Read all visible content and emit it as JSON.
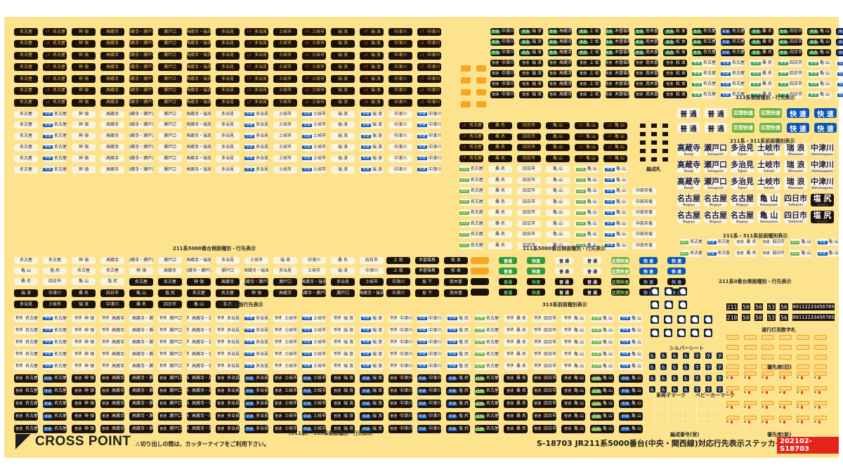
{
  "sheet": {
    "product_code": "S-18703",
    "title": "S-18703 JR211系5000番台(中央・関西線)対応行先表示ステッカー",
    "code_badge": "202102-S18703",
    "brand": "CROSS POINT",
    "warning": "⚠切り出しの際は、カッターナイフをご利用下さい。",
    "colors": {
      "background": "#fde38e",
      "dark_label": "#1b120c",
      "light_label": "#fbf3dc",
      "blue": "#0b56b2",
      "green": "#2e9b3a",
      "orange": "#f6a623",
      "red_badge": "#e3241b"
    }
  },
  "section_a": {
    "caption": "211系5000番台側面種別・行先表示",
    "destinations": [
      "名古屋",
      "名古屋",
      "神 領",
      "高蔵寺",
      "高蔵寺・瀬戸口",
      "瀬戸口",
      "高蔵寺・瑞浪",
      "多治見",
      "多治見",
      "土岐市",
      "土岐市",
      "瑞 浪",
      "瑞 浪",
      "中津川",
      "中津川"
    ],
    "tags": [
      "",
      "快速",
      "",
      "",
      "",
      "",
      "",
      "",
      "快速",
      "",
      "快速",
      "",
      "快速",
      "",
      "快速"
    ]
  },
  "section_b": {
    "caption": "211系5000番台側面種別・行先表示",
    "destinations": [
      "名古屋",
      "桑 名",
      "四日市",
      "亀 山",
      "亀 山",
      "亀 山",
      "中部天竜"
    ],
    "tags": [
      "211",
      "",
      "",
      "",
      "211",
      "快速",
      ""
    ]
  },
  "section_c": {
    "caption": "313系側面種別・行先表示",
    "destinations": [
      "中津川",
      "瑞 浪",
      "高蔵寺",
      "上 松",
      "木曽福島",
      "南木曽",
      "松 本",
      "名古屋",
      "名古屋",
      "桑 名",
      "四日市",
      "亀 山",
      "亀 山"
    ],
    "tags": [
      "普通",
      "普通",
      "普通",
      "普通",
      "普通",
      "普通",
      "普通",
      "普通",
      "快速",
      "普通",
      "普通",
      "普通",
      "快速"
    ]
  },
  "section_d": {
    "caption": "211系・311系前面種別表示",
    "kinds": [
      "普 通",
      "普 通",
      "区間快速",
      "区間快速",
      "快 速",
      "快 速"
    ]
  },
  "section_e": {
    "caption": "211系・311系前面種別表示",
    "rows": [
      [
        {
          "jp": "高蔵寺",
          "en": "Kozoji"
        },
        {
          "jp": "瀬戸口",
          "en": "Setoguchi"
        },
        {
          "jp": "多治見",
          "en": "Tajimi"
        },
        {
          "jp": "土岐市",
          "en": "Tokishi"
        },
        {
          "jp": "瑞 浪",
          "en": "Mizunami"
        },
        {
          "jp": "中津川",
          "en": "Nakatsugawa"
        }
      ],
      [
        {
          "jp": "名古屋",
          "en": "Nagoya"
        },
        {
          "jp": "名古屋",
          "en": "Nagoya"
        },
        {
          "jp": "名古屋",
          "en": "Nagoya"
        },
        {
          "jp": "亀 山",
          "en": "Kameyama"
        },
        {
          "jp": "四日市",
          "en": "Yokkaichi"
        },
        {
          "jp": "塩 尻",
          "en": "Shiojiri"
        }
      ]
    ]
  },
  "section_f": {
    "caption": "211系0番台側面種別・行先表示",
    "destinations": [
      "名古屋",
      "名古屋",
      "桑 名",
      "四日市",
      "亀 山",
      "亀 山"
    ],
    "tags": [
      "211",
      "快速",
      "普通",
      "普通",
      "211",
      "快速"
    ]
  },
  "formation_plates": {
    "caption": "編成札"
  },
  "section_g": {
    "caption": "313系前面行先表示",
    "destinations": [
      "名古屋",
      "名古屋",
      "神 領",
      "高蔵寺",
      "高蔵寺・瀬戸口",
      "瀬戸口",
      "高蔵寺・瑞浪",
      "多治見",
      "土岐市",
      "瑞 浪",
      "中津川",
      "桑 名",
      "四日市",
      "亀 山",
      "塩 尻",
      "上 松",
      "木曽福島",
      "松 本"
    ],
    "dark_row_extra": [
      "中津川",
      "坂 下",
      "南木曽"
    ]
  },
  "section_h": {
    "caption": "313系前面種別表示",
    "kinds": [
      "",
      "普通",
      "快速",
      "普 通",
      "普 通",
      "区間快速",
      "快 速",
      "快 速"
    ]
  },
  "section_i": {
    "caption": "(311系)・313系側面種別・行先表示",
    "destinations": [
      "名古屋",
      "名古屋",
      "神 領",
      "高蔵寺",
      "高蔵寺・瀬戸口",
      "瀬戸口",
      "高蔵寺・瑞浪",
      "多治見",
      "多治見",
      "土岐市",
      "土岐市",
      "瑞 浪",
      "瑞 浪",
      "中津川",
      "中津川",
      "塩 尻",
      "名古屋",
      "桑 名",
      "四日市",
      "亀 山",
      "亀 山",
      "亀 山"
    ],
    "tags": [
      "普通",
      "快速",
      "普通",
      "普通",
      "普通",
      "普通",
      "普通",
      "普通",
      "快速",
      "普通",
      "快速",
      "普通",
      "快速",
      "普通",
      "快速",
      "快速",
      "区快",
      "普通",
      "普通",
      "普通",
      "区快",
      "快速"
    ]
  },
  "run_numbers": {
    "caption": "運行灯用数字札",
    "rows": [
      [
        "211",
        "50",
        "50",
        "53",
        "56",
        "00112233456789"
      ],
      [
        "210",
        "50",
        "50",
        "53",
        "56",
        "00112233456789"
      ]
    ]
  },
  "silver_seat": {
    "caption": "シルバーシート"
  },
  "wheelchair": {
    "caption": "車椅子マーク"
  },
  "stroller": {
    "caption": "ベビーカーマーク"
  },
  "formation_numbers": {
    "caption": "編成番号(室)"
  },
  "priority_old": {
    "caption": "優先席(旧)"
  },
  "priority_new": {
    "caption": "優先席(新)"
  }
}
